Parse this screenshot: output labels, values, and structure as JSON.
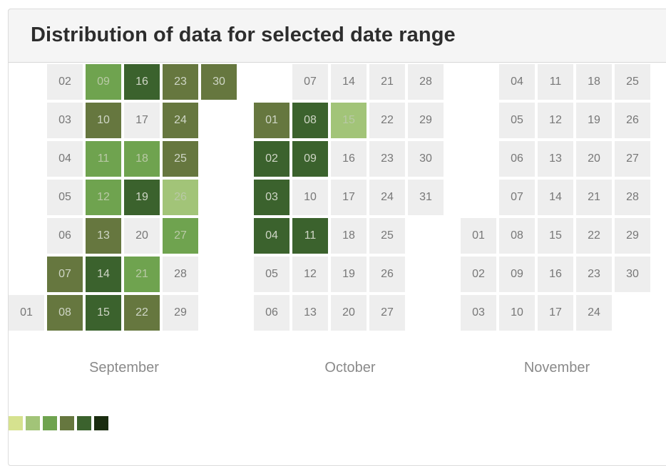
{
  "header": {
    "title": "Distribution of data for selected date range"
  },
  "chart_data": {
    "type": "heatmap",
    "title": "Distribution of data for selected date range",
    "months": [
      {
        "name": "September",
        "days": [
          {
            "day": "01",
            "level": 0
          },
          {
            "day": "02",
            "level": 0
          },
          {
            "day": "03",
            "level": 0
          },
          {
            "day": "04",
            "level": 0
          },
          {
            "day": "05",
            "level": 0
          },
          {
            "day": "06",
            "level": 0
          },
          {
            "day": "07",
            "level": 4
          },
          {
            "day": "08",
            "level": 4
          },
          {
            "day": "09",
            "level": 3
          },
          {
            "day": "10",
            "level": 4
          },
          {
            "day": "11",
            "level": 3
          },
          {
            "day": "12",
            "level": 3
          },
          {
            "day": "13",
            "level": 4
          },
          {
            "day": "14",
            "level": 5
          },
          {
            "day": "15",
            "level": 5
          },
          {
            "day": "16",
            "level": 5
          },
          {
            "day": "17",
            "level": 0
          },
          {
            "day": "18",
            "level": 3
          },
          {
            "day": "19",
            "level": 5
          },
          {
            "day": "20",
            "level": 0
          },
          {
            "day": "21",
            "level": 3
          },
          {
            "day": "22",
            "level": 4
          },
          {
            "day": "23",
            "level": 4
          },
          {
            "day": "24",
            "level": 4
          },
          {
            "day": "25",
            "level": 4
          },
          {
            "day": "26",
            "level": 2
          },
          {
            "day": "27",
            "level": 3
          },
          {
            "day": "28",
            "level": 0
          },
          {
            "day": "29",
            "level": 0
          },
          {
            "day": "30",
            "level": 4
          }
        ]
      },
      {
        "name": "October",
        "days": [
          {
            "day": "01",
            "level": 4
          },
          {
            "day": "02",
            "level": 5
          },
          {
            "day": "03",
            "level": 5
          },
          {
            "day": "04",
            "level": 5
          },
          {
            "day": "05",
            "level": 0
          },
          {
            "day": "06",
            "level": 0
          },
          {
            "day": "07",
            "level": 0
          },
          {
            "day": "08",
            "level": 5
          },
          {
            "day": "09",
            "level": 5
          },
          {
            "day": "10",
            "level": 0
          },
          {
            "day": "11",
            "level": 5
          },
          {
            "day": "12",
            "level": 0
          },
          {
            "day": "13",
            "level": 0
          },
          {
            "day": "14",
            "level": 0
          },
          {
            "day": "15",
            "level": 2
          },
          {
            "day": "16",
            "level": 0
          },
          {
            "day": "17",
            "level": 0
          },
          {
            "day": "18",
            "level": 0
          },
          {
            "day": "19",
            "level": 0
          },
          {
            "day": "20",
            "level": 0
          },
          {
            "day": "21",
            "level": 0
          },
          {
            "day": "22",
            "level": 0
          },
          {
            "day": "23",
            "level": 0
          },
          {
            "day": "24",
            "level": 0
          },
          {
            "day": "25",
            "level": 0
          },
          {
            "day": "26",
            "level": 0
          },
          {
            "day": "27",
            "level": 0
          },
          {
            "day": "28",
            "level": 0
          },
          {
            "day": "29",
            "level": 0
          },
          {
            "day": "30",
            "level": 0
          },
          {
            "day": "31",
            "level": 0
          }
        ]
      },
      {
        "name": "November",
        "days": [
          {
            "day": "01",
            "level": 0
          },
          {
            "day": "02",
            "level": 0
          },
          {
            "day": "03",
            "level": 0
          },
          {
            "day": "04",
            "level": 0
          },
          {
            "day": "05",
            "level": 0
          },
          {
            "day": "06",
            "level": 0
          },
          {
            "day": "07",
            "level": 0
          },
          {
            "day": "08",
            "level": 0
          },
          {
            "day": "09",
            "level": 0
          },
          {
            "day": "10",
            "level": 0
          },
          {
            "day": "11",
            "level": 0
          },
          {
            "day": "12",
            "level": 0
          },
          {
            "day": "13",
            "level": 0
          },
          {
            "day": "14",
            "level": 0
          },
          {
            "day": "15",
            "level": 0
          },
          {
            "day": "16",
            "level": 0
          },
          {
            "day": "17",
            "level": 0
          },
          {
            "day": "18",
            "level": 0
          },
          {
            "day": "19",
            "level": 0
          },
          {
            "day": "20",
            "level": 0
          },
          {
            "day": "21",
            "level": 0
          },
          {
            "day": "22",
            "level": 0
          },
          {
            "day": "23",
            "level": 0
          },
          {
            "day": "24",
            "level": 0
          },
          {
            "day": "25",
            "level": 0
          },
          {
            "day": "26",
            "level": 0
          },
          {
            "day": "27",
            "level": 0
          },
          {
            "day": "28",
            "level": 0
          },
          {
            "day": "29",
            "level": 0
          },
          {
            "day": "30",
            "level": 0
          }
        ]
      }
    ],
    "colors": {
      "empty": "#eeeeee",
      "scale": [
        "#d6e28f",
        "#a2c478",
        "#6fa34f",
        "#66773f",
        "#3b622d",
        "#1a2c0f"
      ]
    }
  }
}
